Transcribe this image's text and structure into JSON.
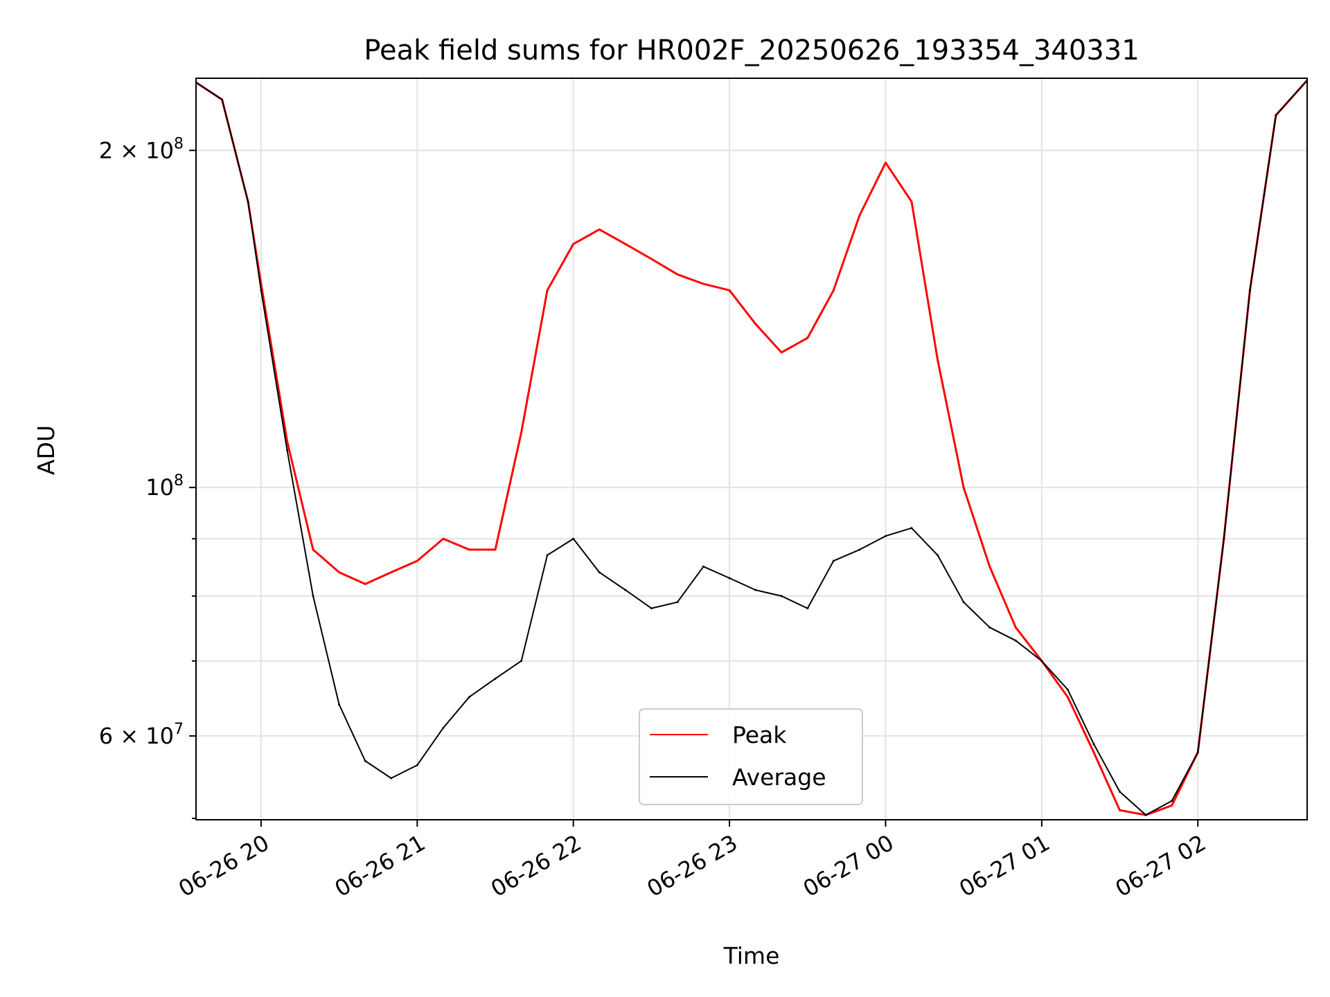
{
  "chart_data": {
    "type": "line",
    "title": "Peak field sums for HR002F_20250626_193354_340331",
    "xlabel": "Time",
    "ylabel": "ADU",
    "y_scale": "log",
    "ylim": [
      50500000,
      232000000
    ],
    "xlim": [
      "2025-06-26 19:35",
      "2025-06-27 02:42"
    ],
    "x_ticks": [
      {
        "time": "2025-06-26 20:00",
        "label": "06-26 20"
      },
      {
        "time": "2025-06-26 21:00",
        "label": "06-26 21"
      },
      {
        "time": "2025-06-26 22:00",
        "label": "06-26 22"
      },
      {
        "time": "2025-06-26 23:00",
        "label": "06-26 23"
      },
      {
        "time": "2025-06-27 00:00",
        "label": "06-27 00"
      },
      {
        "time": "2025-06-27 01:00",
        "label": "06-27 01"
      },
      {
        "time": "2025-06-27 02:00",
        "label": "06-27 02"
      }
    ],
    "y_major_ticks": [
      {
        "value": 60000000,
        "base": "6 × 10",
        "exp": "7"
      },
      {
        "value": 100000000,
        "base": "10",
        "exp": "8"
      },
      {
        "value": 200000000,
        "base": "2 × 10",
        "exp": "8"
      }
    ],
    "y_minor_ticks": [
      70000000,
      80000000,
      90000000
    ],
    "grid": true,
    "legend": "lower center",
    "series": [
      {
        "name": "Peak",
        "color": "#ff0000",
        "x": [
          "2025-06-26 19:35",
          "2025-06-26 19:45",
          "2025-06-26 19:55",
          "2025-06-26 20:00",
          "2025-06-26 20:10",
          "2025-06-26 20:20",
          "2025-06-26 20:30",
          "2025-06-26 20:40",
          "2025-06-26 20:50",
          "2025-06-26 21:00",
          "2025-06-26 21:10",
          "2025-06-26 21:20",
          "2025-06-26 21:30",
          "2025-06-26 21:40",
          "2025-06-26 21:50",
          "2025-06-26 22:00",
          "2025-06-26 22:10",
          "2025-06-26 22:20",
          "2025-06-26 22:30",
          "2025-06-26 22:40",
          "2025-06-26 22:50",
          "2025-06-26 23:00",
          "2025-06-26 23:10",
          "2025-06-26 23:20",
          "2025-06-26 23:30",
          "2025-06-26 23:40",
          "2025-06-26 23:50",
          "2025-06-27 00:00",
          "2025-06-27 00:10",
          "2025-06-27 00:20",
          "2025-06-27 00:30",
          "2025-06-27 00:40",
          "2025-06-27 00:50",
          "2025-06-27 01:00",
          "2025-06-27 01:10",
          "2025-06-27 01:20",
          "2025-06-27 01:30",
          "2025-06-27 01:40",
          "2025-06-27 01:50",
          "2025-06-27 02:00",
          "2025-06-27 02:10",
          "2025-06-27 02:20",
          "2025-06-27 02:30",
          "2025-06-27 02:42"
        ],
        "values": [
          230000000,
          222000000,
          180000000,
          152000000,
          110000000,
          88000000,
          84000000,
          82000000,
          84000000,
          86000000,
          90000000,
          88000000,
          88000000,
          112000000,
          150000000,
          165000000,
          170000000,
          165000000,
          160000000,
          155000000,
          152000000,
          150000000,
          140000000,
          132000000,
          136000000,
          150000000,
          175000000,
          195000000,
          180000000,
          130000000,
          100000000,
          85000000,
          75000000,
          70000000,
          65000000,
          58000000,
          51500000,
          51000000,
          52000000,
          58000000,
          90000000,
          150000000,
          215000000,
          231000000
        ]
      },
      {
        "name": "Average",
        "color": "#000000",
        "x": [
          "2025-06-26 19:35",
          "2025-06-26 19:45",
          "2025-06-26 19:55",
          "2025-06-26 20:00",
          "2025-06-26 20:10",
          "2025-06-26 20:20",
          "2025-06-26 20:30",
          "2025-06-26 20:40",
          "2025-06-26 20:50",
          "2025-06-26 21:00",
          "2025-06-26 21:10",
          "2025-06-26 21:20",
          "2025-06-26 21:30",
          "2025-06-26 21:40",
          "2025-06-26 21:50",
          "2025-06-26 22:00",
          "2025-06-26 22:10",
          "2025-06-26 22:20",
          "2025-06-26 22:30",
          "2025-06-26 22:40",
          "2025-06-26 22:50",
          "2025-06-26 23:00",
          "2025-06-26 23:10",
          "2025-06-26 23:20",
          "2025-06-26 23:30",
          "2025-06-26 23:40",
          "2025-06-26 23:50",
          "2025-06-27 00:00",
          "2025-06-27 00:10",
          "2025-06-27 00:20",
          "2025-06-27 00:30",
          "2025-06-27 00:40",
          "2025-06-27 00:50",
          "2025-06-27 01:00",
          "2025-06-27 01:10",
          "2025-06-27 01:20",
          "2025-06-27 01:30",
          "2025-06-27 01:40",
          "2025-06-27 01:50",
          "2025-06-27 02:00",
          "2025-06-27 02:10",
          "2025-06-27 02:20",
          "2025-06-27 02:30",
          "2025-06-27 02:42"
        ],
        "values": [
          230000000,
          222000000,
          180000000,
          150000000,
          108000000,
          80000000,
          64000000,
          57000000,
          55000000,
          56500000,
          61000000,
          65000000,
          67500000,
          70000000,
          87000000,
          90000000,
          84000000,
          81000000,
          78000000,
          79000000,
          85000000,
          83000000,
          81000000,
          80000000,
          78000000,
          86000000,
          88000000,
          90500000,
          92000000,
          87000000,
          79000000,
          75000000,
          73000000,
          70000000,
          66000000,
          59000000,
          53500000,
          51000000,
          52500000,
          58000000,
          90000000,
          150000000,
          215000000,
          231000000
        ]
      }
    ]
  }
}
